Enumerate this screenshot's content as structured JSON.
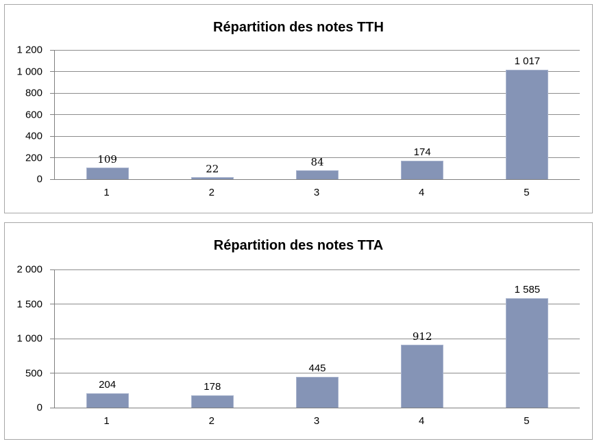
{
  "page": {
    "background": "#FFFFFF"
  },
  "colors": {
    "bar_fill": "#8594B6",
    "bar_edge": "#A9B4CE",
    "gridline": "#8C8C8C",
    "axis": "#7F7F7F",
    "panel_border": "#A6A6A6",
    "text": "#000000"
  },
  "chart_data": [
    {
      "type": "bar",
      "title": "Répartition des notes TTH",
      "categories": [
        "1",
        "2",
        "3",
        "4",
        "5"
      ],
      "values": [
        109,
        22,
        84,
        174,
        1017
      ],
      "value_labels": [
        "109",
        "22",
        "84",
        "174",
        "1 017"
      ],
      "value_label_fonts": [
        "serif",
        "serif",
        "serif",
        "sans",
        "sans"
      ],
      "xlabel": "",
      "ylabel": "",
      "ylim": [
        0,
        1200
      ],
      "ytick_step": 200,
      "ytick_labels": [
        "1 200",
        "1 000",
        "800",
        "600",
        "400",
        "200",
        "0"
      ],
      "grid": true,
      "legend": "none"
    },
    {
      "type": "bar",
      "title": "Répartition des notes TTA",
      "categories": [
        "1",
        "2",
        "3",
        "4",
        "5"
      ],
      "values": [
        204,
        178,
        445,
        912,
        1585
      ],
      "value_labels": [
        "204",
        "178",
        "445",
        "912",
        "1 585"
      ],
      "value_label_fonts": [
        "sans",
        "sans",
        "sans",
        "serif",
        "sans"
      ],
      "xlabel": "",
      "ylabel": "",
      "ylim": [
        0,
        2000
      ],
      "ytick_step": 500,
      "ytick_labels": [
        "2 000",
        "1 500",
        "1 000",
        "500",
        "0"
      ],
      "grid": true,
      "legend": "none"
    }
  ]
}
